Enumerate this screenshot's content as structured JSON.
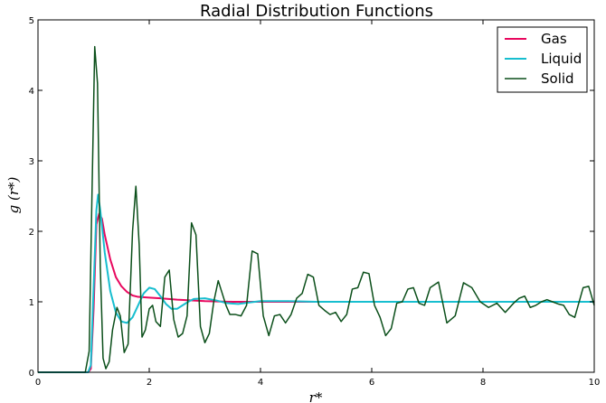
{
  "chart_data": {
    "type": "line",
    "title": "Radial Distribution Functions",
    "xlabel": "r*",
    "ylabel": "g (r*)",
    "xlim": [
      0,
      10
    ],
    "ylim": [
      0,
      5
    ],
    "xticks": [
      0,
      2,
      4,
      6,
      8,
      10
    ],
    "yticks": [
      0,
      1,
      2,
      3,
      4,
      5
    ],
    "grid": false,
    "legend_position": "top-right",
    "series": [
      {
        "name": "Gas",
        "color": "#e8085e",
        "x": [
          0,
          0.8,
          0.9,
          0.95,
          1.0,
          1.05,
          1.1,
          1.15,
          1.2,
          1.3,
          1.4,
          1.5,
          1.6,
          1.7,
          1.8,
          2.0,
          2.2,
          2.5,
          3.0,
          3.5,
          4.0,
          5.0,
          6.0,
          8.0,
          10.0
        ],
        "y": [
          0,
          0,
          0,
          0.05,
          0.9,
          2.1,
          2.25,
          2.18,
          1.95,
          1.6,
          1.35,
          1.22,
          1.14,
          1.09,
          1.07,
          1.06,
          1.05,
          1.03,
          1.01,
          1.0,
          1.0,
          1.0,
          1.0,
          1.0,
          1.0
        ]
      },
      {
        "name": "Liquid",
        "color": "#17becf",
        "x": [
          0,
          0.8,
          0.9,
          0.95,
          1.0,
          1.05,
          1.08,
          1.12,
          1.2,
          1.3,
          1.4,
          1.5,
          1.6,
          1.7,
          1.8,
          1.9,
          2.0,
          2.1,
          2.2,
          2.3,
          2.4,
          2.5,
          2.6,
          2.7,
          2.8,
          3.0,
          3.2,
          3.4,
          3.6,
          3.8,
          4.0,
          4.5,
          5.0,
          6.0,
          8.0,
          10.0
        ],
        "y": [
          0,
          0,
          0,
          0.1,
          1.2,
          2.3,
          2.52,
          2.3,
          1.7,
          1.15,
          0.85,
          0.72,
          0.7,
          0.78,
          0.95,
          1.12,
          1.2,
          1.18,
          1.08,
          0.97,
          0.9,
          0.9,
          0.95,
          1.0,
          1.04,
          1.05,
          1.02,
          0.98,
          0.97,
          0.99,
          1.01,
          1.01,
          1.0,
          1.0,
          1.0,
          1.0
        ]
      },
      {
        "name": "Solid",
        "color": "#0b4f1a",
        "x": [
          0,
          0.85,
          0.92,
          0.97,
          1.02,
          1.07,
          1.12,
          1.17,
          1.22,
          1.28,
          1.34,
          1.42,
          1.48,
          1.55,
          1.62,
          1.7,
          1.76,
          1.82,
          1.87,
          1.93,
          2.0,
          2.06,
          2.12,
          2.2,
          2.28,
          2.36,
          2.44,
          2.52,
          2.6,
          2.68,
          2.76,
          2.84,
          2.92,
          3.0,
          3.08,
          3.16,
          3.24,
          3.3,
          3.38,
          3.45,
          3.55,
          3.65,
          3.75,
          3.85,
          3.95,
          4.05,
          4.15,
          4.25,
          4.35,
          4.45,
          4.55,
          4.65,
          4.75,
          4.85,
          4.95,
          5.05,
          5.15,
          5.25,
          5.35,
          5.45,
          5.55,
          5.65,
          5.75,
          5.85,
          5.95,
          6.05,
          6.15,
          6.25,
          6.35,
          6.45,
          6.55,
          6.65,
          6.75,
          6.85,
          6.95,
          7.05,
          7.2,
          7.35,
          7.5,
          7.65,
          7.8,
          7.95,
          8.1,
          8.25,
          8.4,
          8.55,
          8.65,
          8.75,
          8.85,
          8.95,
          9.05,
          9.15,
          9.25,
          9.35,
          9.45,
          9.55,
          9.65,
          9.8,
          9.9,
          10.0
        ],
        "y": [
          0,
          0,
          0.3,
          2.5,
          4.62,
          4.1,
          1.5,
          0.2,
          0.05,
          0.15,
          0.6,
          0.92,
          0.8,
          0.28,
          0.4,
          2.0,
          2.64,
          1.8,
          0.5,
          0.6,
          0.9,
          0.95,
          0.72,
          0.65,
          1.35,
          1.45,
          0.75,
          0.5,
          0.55,
          0.8,
          2.12,
          1.95,
          0.65,
          0.42,
          0.55,
          1.0,
          1.3,
          1.15,
          0.95,
          0.82,
          0.82,
          0.8,
          0.95,
          1.72,
          1.68,
          0.8,
          0.52,
          0.8,
          0.82,
          0.7,
          0.82,
          1.05,
          1.12,
          1.39,
          1.35,
          0.95,
          0.88,
          0.82,
          0.85,
          0.72,
          0.82,
          1.18,
          1.2,
          1.42,
          1.4,
          0.95,
          0.78,
          0.52,
          0.62,
          0.98,
          1.0,
          1.18,
          1.2,
          0.98,
          0.95,
          1.2,
          1.28,
          0.7,
          0.8,
          1.27,
          1.2,
          1.0,
          0.92,
          0.98,
          0.85,
          0.98,
          1.05,
          1.08,
          0.92,
          0.95,
          1.0,
          1.03,
          1.0,
          0.97,
          0.95,
          0.82,
          0.78,
          1.2,
          1.22,
          0.95
        ]
      }
    ]
  }
}
